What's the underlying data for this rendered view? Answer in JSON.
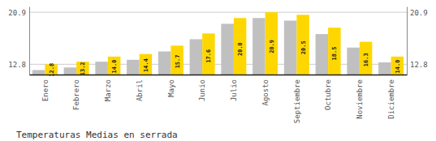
{
  "chart_data": {
    "type": "bar",
    "title": "Temperaturas Medias en serrada",
    "categories": [
      "Enero",
      "Febrero",
      "Marzo",
      "Abril",
      "Mayo",
      "Junio",
      "Julio",
      "Agosto",
      "Septiembre",
      "Octubre",
      "Noviembre",
      "Diciembre"
    ],
    "series": [
      {
        "color": "#C0C0C0",
        "values": [
          11.9,
          12.3,
          13.2,
          13.5,
          14.8,
          16.7,
          19.1,
          20.0,
          19.6,
          17.5,
          15.4,
          13.1
        ]
      },
      {
        "color": "#FFD700",
        "values": [
          12.8,
          13.2,
          14.0,
          14.4,
          15.7,
          17.6,
          20.0,
          20.9,
          20.5,
          18.5,
          16.3,
          14.0
        ],
        "value_labels": [
          "12.8",
          "13.2",
          "14.0",
          "14.4",
          "15.7",
          "17.6",
          "20.0",
          "20.9",
          "20.5",
          "18.5",
          "16.3",
          "14.0"
        ],
        "data_labels": true
      }
    ],
    "ylim": [
      11.2,
      21.8
    ],
    "yticks": [
      12.8,
      20.9
    ],
    "grid": true
  }
}
